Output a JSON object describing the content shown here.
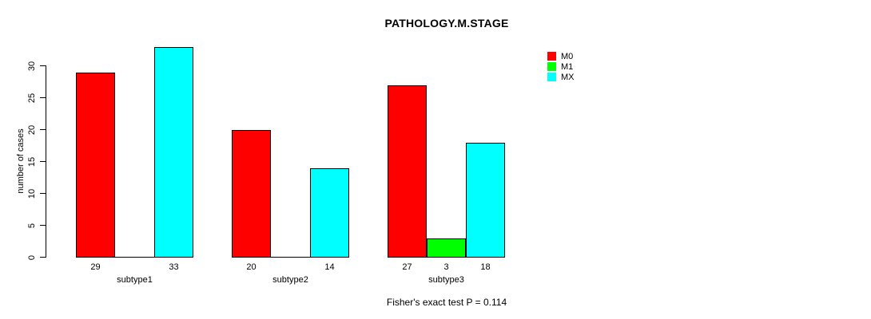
{
  "figure": {
    "title": "PATHOLOGY.M.STAGE",
    "caption": "Fisher's exact test P = 0.114"
  },
  "chart_data": {
    "type": "bar",
    "title": "PATHOLOGY.M.STAGE",
    "xlabel": "",
    "ylabel": "number of cases",
    "categories": [
      "subtype1",
      "subtype2",
      "subtype3"
    ],
    "series": [
      {
        "name": "M0",
        "color": "#ff0000",
        "values": [
          29,
          20,
          27
        ]
      },
      {
        "name": "M1",
        "color": "#00ff00",
        "values": [
          0,
          0,
          3
        ]
      },
      {
        "name": "MX",
        "color": "#00ffff",
        "values": [
          33,
          14,
          18
        ]
      }
    ],
    "bar_value_labels": [
      [
        "29",
        null,
        "33"
      ],
      [
        "20",
        null,
        "14"
      ],
      [
        "27",
        "3",
        "18"
      ]
    ],
    "yticks": [
      0,
      5,
      10,
      15,
      20,
      25,
      30
    ],
    "ylim": [
      0,
      33
    ],
    "grid": false,
    "legend": {
      "position": "inside-top-right",
      "entries": [
        "M0",
        "M1",
        "MX"
      ]
    },
    "annotation": "Fisher's exact test P = 0.114"
  }
}
